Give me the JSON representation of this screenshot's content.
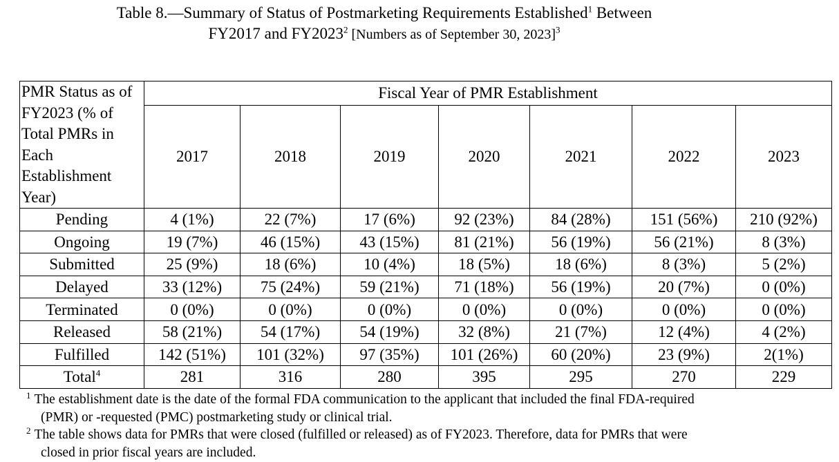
{
  "title": {
    "line1_text": "Table 8.—Summary of Status of Postmarketing Requirements Established",
    "line1_sup": "1",
    "line1_end": " Between",
    "line2_text": "FY2017 and FY2023",
    "line2_sup": "2",
    "line2_small": " [Numbers as of September 30, 2023]",
    "line2_sup2": "3"
  },
  "table": {
    "status_header": "PMR Status as of FY2023 (% of Total PMRs in Each Establishment Year)",
    "fiscal_header": "Fiscal Year of PMR Establishment",
    "years": [
      "2017",
      "2018",
      "2019",
      "2020",
      "2021",
      "2022",
      "2023"
    ],
    "rows": [
      {
        "label": "Pending",
        "cells": [
          "4 (1%)",
          "22 (7%)",
          "17 (6%)",
          "92 (23%)",
          "84 (28%)",
          "151 (56%)",
          "210 (92%)"
        ]
      },
      {
        "label": "Ongoing",
        "cells": [
          "19 (7%)",
          "46 (15%)",
          "43 (15%)",
          "81 (21%)",
          "56 (19%)",
          "56 (21%)",
          "8 (3%)"
        ]
      },
      {
        "label": "Submitted",
        "cells": [
          "25 (9%)",
          "18 (6%)",
          "10 (4%)",
          "18 (5%)",
          "18 (6%)",
          "8 (3%)",
          "5 (2%)"
        ]
      },
      {
        "label": "Delayed",
        "cells": [
          "33 (12%)",
          "75 (24%)",
          "59 (21%)",
          "71 (18%)",
          "56 (19%)",
          "20 (7%)",
          "0 (0%)"
        ]
      },
      {
        "label": "Terminated",
        "cells": [
          "0 (0%)",
          "0 (0%)",
          "0 (0%)",
          "0 (0%)",
          "0 (0%)",
          "0 (0%)",
          "0 (0%)"
        ]
      },
      {
        "label": "Released",
        "cells": [
          "58 (21%)",
          "54 (17%)",
          "54 (19%)",
          "32 (8%)",
          "21 (7%)",
          "12 (4%)",
          "4 (2%)"
        ]
      },
      {
        "label": "Fulfilled",
        "cells": [
          "142 (51%)",
          "101 (32%)",
          "97 (35%)",
          "101 (26%)",
          "60 (20%)",
          "23 (9%)",
          "2(1%)"
        ]
      }
    ],
    "total": {
      "label": "Total",
      "sup": "4",
      "cells": [
        "281",
        "316",
        "280",
        "395",
        "295",
        "270",
        "229"
      ]
    }
  },
  "footnotes": [
    {
      "num": "1",
      "line1": "The establishment date is the date of the formal FDA communication to the applicant that included the final FDA-required",
      "line2": "(PMR) or -requested (PMC) postmarketing study or clinical trial."
    },
    {
      "num": "2",
      "line1": "The table shows data for PMRs that were closed (fulfilled or released) as of FY2023. Therefore, data for PMRs that were",
      "line2": "closed in prior fiscal years are included."
    }
  ]
}
